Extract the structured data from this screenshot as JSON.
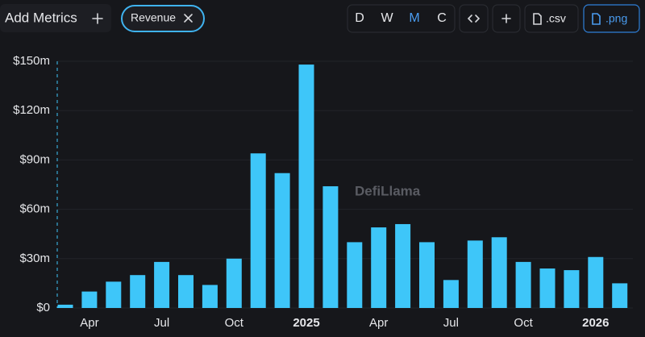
{
  "toolbar": {
    "add_metrics": "Add Metrics",
    "metric": "Revenue",
    "intervals": [
      "D",
      "W",
      "M",
      "C"
    ],
    "csv": ".csv",
    "png": ".png"
  },
  "watermark": "DefiLlama",
  "chart_data": {
    "type": "bar",
    "categories": [
      null,
      "Apr",
      null,
      null,
      "Jul",
      null,
      null,
      "Oct",
      null,
      null,
      "2025",
      null,
      null,
      "Apr",
      null,
      null,
      "Jul",
      null,
      null,
      "Oct",
      null,
      null,
      "2026",
      null
    ],
    "values": [
      2,
      10,
      16,
      20,
      28,
      20,
      14,
      30,
      94,
      82,
      148,
      74,
      40,
      49,
      51,
      40,
      17,
      41,
      43,
      28,
      24,
      23,
      31,
      15
    ],
    "color": "#3ec6f9",
    "ylim": [
      0,
      150
    ],
    "yticks": [
      {
        "value": 0,
        "label": "$0"
      },
      {
        "value": 30,
        "label": "$30m"
      },
      {
        "value": 60,
        "label": "$60m"
      },
      {
        "value": 90,
        "label": "$90m"
      },
      {
        "value": 120,
        "label": "$120m"
      },
      {
        "value": 150,
        "label": "$150m"
      }
    ],
    "grid": true
  }
}
